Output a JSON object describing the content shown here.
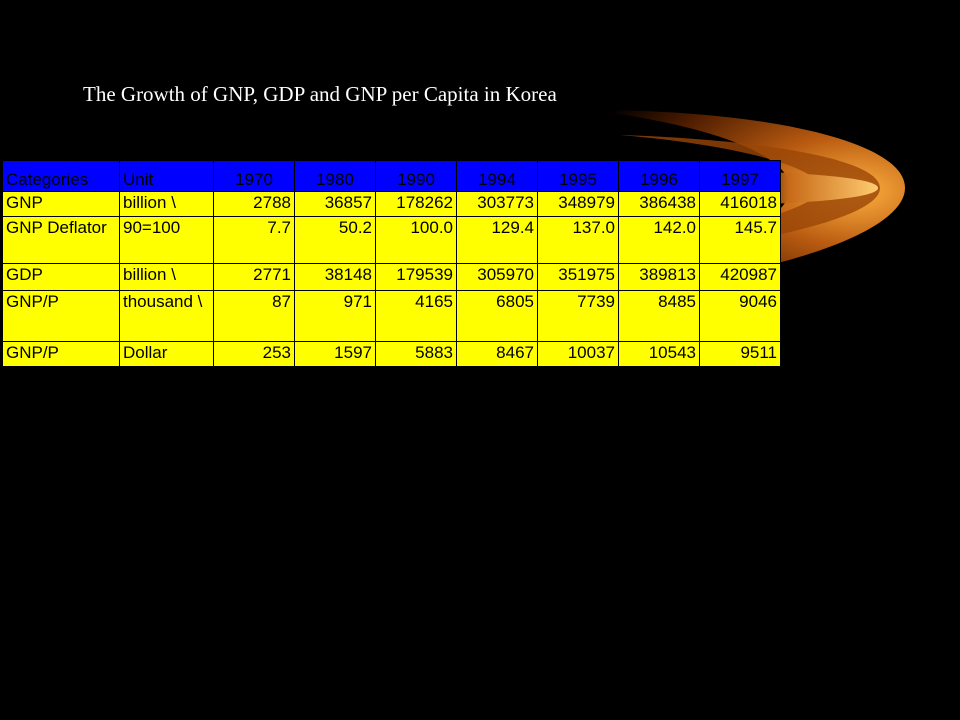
{
  "slide": {
    "title": "The Growth of GNP, GDP and GNP per Capita in Korea"
  },
  "colors": {
    "background": "#000000",
    "header_fill": "#0000ff",
    "cell_fill": "#ffff00",
    "title_text": "#ffffff"
  },
  "table": {
    "headers": [
      "Categories",
      "Unit",
      "1970",
      "1980",
      "1990",
      "1994",
      "1995",
      "1996",
      "1997"
    ],
    "rows": [
      [
        "GNP",
        "billion \\",
        "2788",
        "36857",
        "178262",
        "303773",
        "348979",
        "386438",
        "416018"
      ],
      [
        "GNP Deflator",
        "90=100",
        "7.7",
        "50.2",
        "100.0",
        "129.4",
        "137.0",
        "142.0",
        "145.7"
      ],
      [
        "GDP",
        "billion \\",
        "2771",
        "38148",
        "179539",
        "305970",
        "351975",
        "389813",
        "420987"
      ],
      [
        "GNP/P",
        "thousand \\",
        "87",
        "971",
        "4165",
        "6805",
        "7739",
        "8485",
        "9046"
      ],
      [
        "GNP/P",
        "Dollar",
        "253",
        "1597",
        "5883",
        "8467",
        "10037",
        "10543",
        "9511"
      ]
    ]
  }
}
